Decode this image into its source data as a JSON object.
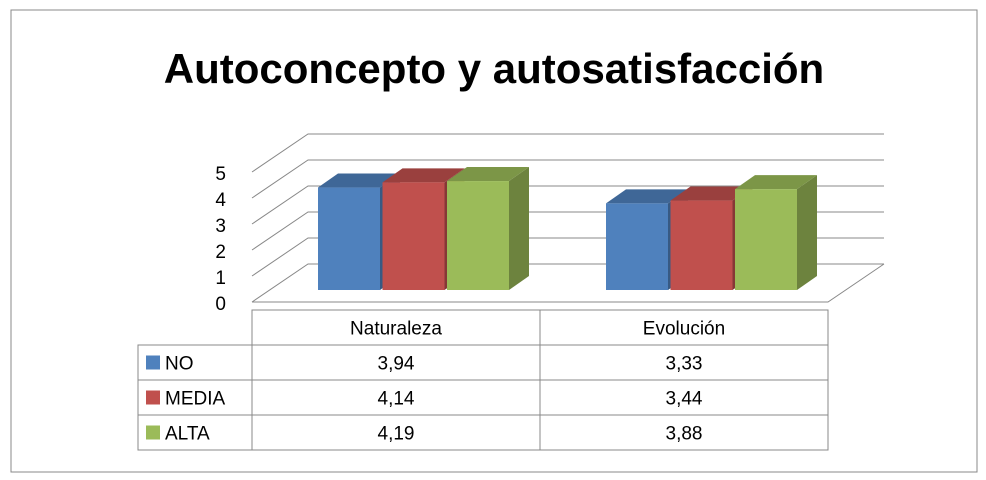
{
  "chart_data": {
    "type": "bar3d",
    "title": "Autoconcepto y autosatisfacción",
    "categories": [
      "Naturaleza",
      "Evolución"
    ],
    "series": [
      {
        "name": "NO",
        "color": "#4f81bd",
        "values": [
          3.94,
          3.33
        ],
        "value_labels": [
          "3,94",
          "3,33"
        ]
      },
      {
        "name": "MEDIA",
        "color": "#c0504d",
        "values": [
          4.14,
          3.44
        ],
        "value_labels": [
          "4,14",
          "3,44"
        ]
      },
      {
        "name": "ALTA",
        "color": "#9bbb59",
        "values": [
          4.19,
          3.88
        ],
        "value_labels": [
          "4,19",
          "3,88"
        ]
      }
    ],
    "ylim": [
      0,
      5
    ],
    "yticks": [
      0,
      1,
      2,
      3,
      4,
      5
    ],
    "grid": true,
    "data_table": true
  }
}
